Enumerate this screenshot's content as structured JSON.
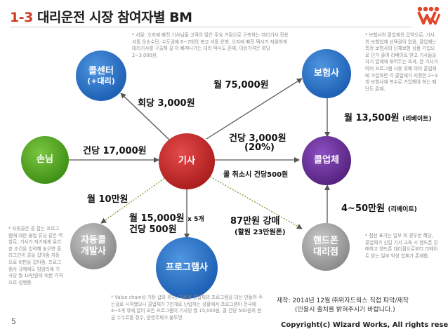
{
  "header": {
    "title_num": "1-3",
    "title_text": "대리운전 시장 참여자별 BM"
  },
  "colors": {
    "accent": "#d23a1e",
    "blue": "#1d5fb4",
    "green": "#3f8f17",
    "red": "#ab1d1d",
    "purple": "#55227e",
    "gray": "#8b8b8b"
  },
  "nodes": {
    "call_center": {
      "line1": "콜센터",
      "line2": "(+대리)"
    },
    "insurance": {
      "label": "보험사"
    },
    "customer": {
      "label": "손님"
    },
    "driver": {
      "label": "기사"
    },
    "company": {
      "label": "콜업체"
    },
    "program_dev": {
      "line1": "자동콜",
      "line2": "개발사"
    },
    "program": {
      "label": "프로그램사"
    },
    "phone_store": {
      "line1": "핸드폰",
      "line2": "대리점"
    }
  },
  "flows": {
    "per_call_3000": "회당 3,000원",
    "monthly_75000": "월 75,000원",
    "per_case_17000": "건당 17,000원",
    "per_case_3000": "건당 3,000원",
    "per_case_pct": "(20%)",
    "cancel_500": "콜 취소시 건당500원",
    "rebate_13500": "월 13,500원",
    "rebate_13500_note": "(리베이트)",
    "monthly_10": "월 10만원",
    "monthly_15000": "월 15,000원",
    "times_5": "x 5개",
    "per_case_500": "건당 500원",
    "phone_87": "87만원 강매",
    "phone_87_note": "(할원 23만원폰)",
    "rebate_4_5": "4~50만원",
    "rebate_4_5_note": "(리베이트)"
  },
  "notes": {
    "call_center": "* 서울: 오지에 빠진 기사님들 고객이 많은 주요 거점으로 구축하는 대리기사 전용 셔틀 운송수단, 수도권에 6~7대의 봉고 셔틀 운행, 오지에 빠진 택시가 자원하게 대리기사를 구출해 갈 이 빠져나가는 대리 택시도 존재, 이용가격은 회당 2~3,000원.",
    "insurance": "* 보험사와 콜업체의 갑약으로, 기사의 보험업체 선택권이 없음, 콜업체는 특정 보험사의 단체보험 상품 가입으로 단가 줄여 리베이트 받고 기사들을 자기 업체에 묶어두는 효과, 한 기사가 여러 프로그램 사용 위해 여러 콜업체에 가입하면 각 콜업체가 지정한 2~3개 보험사에 복수로 가입해야 하는 폐단도 존재.",
    "program_dev": "* 자동콜은 콜 잡는 프로그램에 대한 불법 튜닝 같은 역할로, 기사가 자기에게 유리한 조건을 입력해 놓으면 플리그인이 콜을 잡아줌 자동으로 비판을 잡아줌, 프로그램사 규제에도 암암리에 기사당 월 10만원의 비싼 가격으로 성행중.",
    "phone_store": "* 점선 표기는 일부 의 경우만 해당, 콜업체가 신입 기사 교육 시 핸드폰 강매하고 핸드폰 대리점으로부터 리베이트 받는 일부 악성 업체가 존재함.",
    "program": "* Value chain상 가장 갑의 위치, 처음엔 콜업체의 프로그램을 대신 만들어 주는걸로 시작했으나 콜업체가 7천개로 난립하는 상황에서 프로그램이 전국에 4~5개 밖에 없어 모든 프로그램이 기사당 월 15,000원, 콜 건당 500원의 현금 수수료를 징수, 운영주체가 불투명."
  },
  "source": {
    "line1": "제작: 2014년 12월 ㈜위자드웍스 직접 파악/제작",
    "line2": "(인용시 출처를 밝혀주시기 바랍니다.)"
  },
  "footer": {
    "page": "5",
    "copyright": "Copyright(c) Wizard Works, All rights reserved."
  }
}
